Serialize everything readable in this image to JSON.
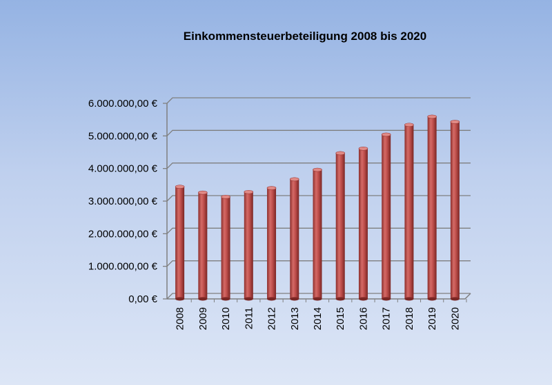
{
  "chart_data": {
    "type": "bar",
    "title": "Einkommensteuerbeteiligung 2008 bis 2020",
    "xlabel": "",
    "ylabel": "",
    "categories": [
      "2008",
      "2009",
      "2010",
      "2011",
      "2012",
      "2013",
      "2014",
      "2015",
      "2016",
      "2017",
      "2018",
      "2019",
      "2020"
    ],
    "values": [
      3440000,
      3260000,
      3130000,
      3280000,
      3400000,
      3670000,
      3960000,
      4470000,
      4610000,
      5040000,
      5340000,
      5590000,
      5430000
    ],
    "ylim": [
      0,
      6000000
    ],
    "yticks": [
      0,
      1000000,
      2000000,
      3000000,
      4000000,
      5000000,
      6000000
    ],
    "ytick_labels": [
      "0,00 €",
      "1.000.000,00 €",
      "2.000.000,00 €",
      "3.000.000,00 €",
      "4.000.000,00 €",
      "5.000.000,00 €",
      "6.000.000,00 €"
    ],
    "grid": true,
    "bar_color": "#c0504d"
  }
}
